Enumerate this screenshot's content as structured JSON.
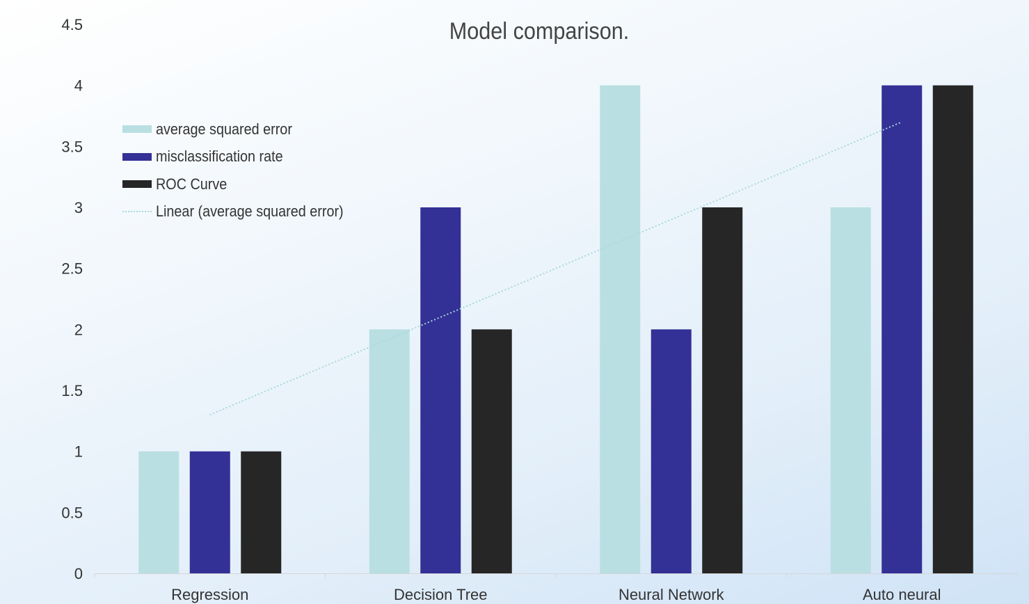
{
  "chart_data": {
    "type": "bar",
    "title": "Model comparison.",
    "categories": [
      "Regression",
      "Decision Tree",
      "Neural Network",
      "Auto neural"
    ],
    "series": [
      {
        "name": "average squared error",
        "values": [
          1,
          2,
          4,
          3
        ],
        "color": "#b9dfe2"
      },
      {
        "name": "misclassification rate",
        "values": [
          1,
          3,
          2,
          4
        ],
        "color": "#333096"
      },
      {
        "name": "ROC Curve",
        "values": [
          1,
          2,
          3,
          4
        ],
        "color": "#262626"
      }
    ],
    "trendline": {
      "name": "Linear (average squared error)",
      "type": "linear",
      "series": "average squared error",
      "values": [
        1.3,
        2.1,
        2.9,
        3.7
      ],
      "color": "#a8d8da",
      "style": "dotted"
    },
    "ylim": [
      0,
      4.5
    ],
    "yticks": [
      "0",
      "0.5",
      "1",
      "1.5",
      "2",
      "2.5",
      "3",
      "3.5",
      "4",
      "4.5"
    ],
    "xlabel": "",
    "ylabel": "",
    "grid": false,
    "legend_position": "top-left"
  }
}
